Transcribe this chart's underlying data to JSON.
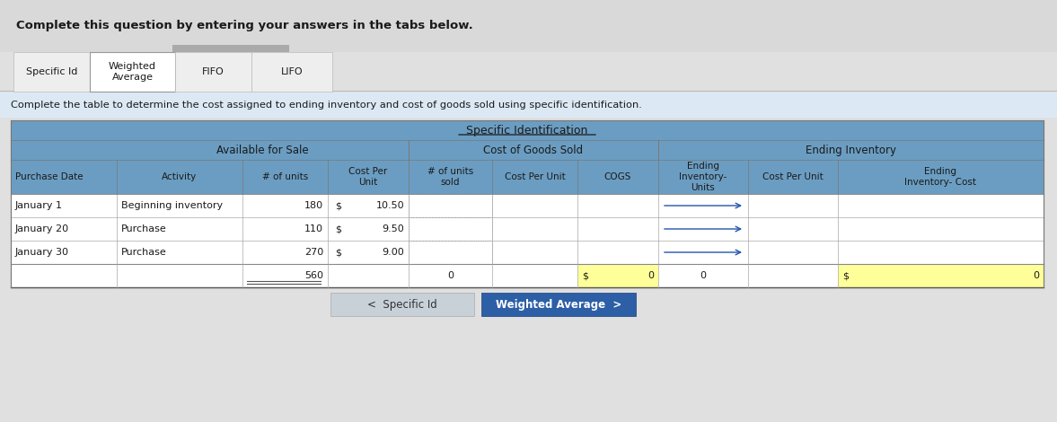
{
  "header_text": "Complete this question by entering your answers in the tabs below.",
  "instruction_text": "Complete the table to determine the cost assigned to ending inventory and cost of goods sold using specific identification.",
  "table_title": "Specific Identification",
  "col_group1": "Available for Sale",
  "col_group2": "Cost of Goods Sold",
  "col_group3": "Ending Inventory",
  "bg_gray": "#d9d9d9",
  "bg_blue_header": "#6b9dc2",
  "bg_white": "#ffffff",
  "bg_yellow": "#ffff99",
  "bg_instr": "#dce9f5",
  "bg_outer": "#e0e0e0",
  "btn_prev_bg": "#c8d0d8",
  "btn_next_bg": "#2d5fa6",
  "btn_prev_text": "<  Specific Id",
  "btn_next_text": "Weighted Average  >",
  "figsize": [
    11.77,
    4.7
  ],
  "dpi": 100
}
